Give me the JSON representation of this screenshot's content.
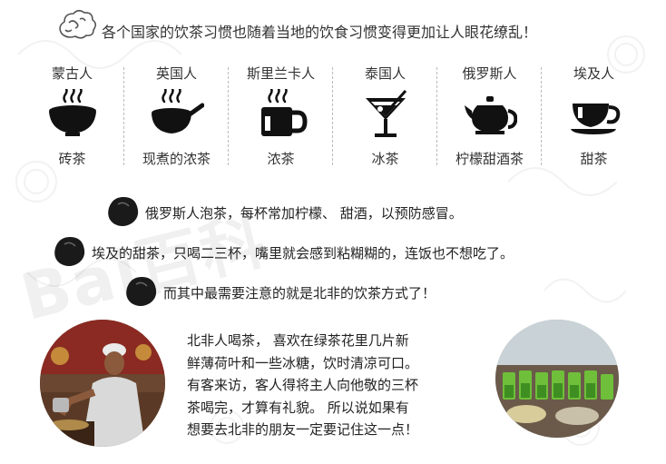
{
  "header": {
    "text": "各个国家的饮茶习惯也随着当地的饮食习惯变得更加让人眼花缭乱！"
  },
  "customs": [
    {
      "country": "蒙古人",
      "tea": "砖茶",
      "icon": "steaming-bowl-icon"
    },
    {
      "country": "英国人",
      "tea": "现煮的浓茶",
      "icon": "steaming-saucepan-icon"
    },
    {
      "country": "斯里兰卡人",
      "tea": "浓茶",
      "icon": "steaming-mug-icon"
    },
    {
      "country": "泰国人",
      "tea": "冰茶",
      "icon": "cocktail-glass-icon"
    },
    {
      "country": "俄罗斯人",
      "tea": "柠檬甜酒茶",
      "icon": "teapot-icon"
    },
    {
      "country": "埃及人",
      "tea": "甜茶",
      "icon": "teacup-saucer-icon"
    }
  ],
  "notes": [
    "俄罗斯人泡茶，每杯常加柠檬、 甜酒，以预防感冒。",
    "埃及的甜茶，只喝二三杯，嘴里就会感到粘糊糊的，连饭也不想吃了。",
    "而其中最需要注意的就是北非的饮茶方式了！"
  ],
  "paragraph_lines": [
    "北非人喝茶， 喜欢在绿茶花里几片新",
    "鲜薄荷叶和一些冰糖，饮时清凉可口。",
    "有客来访，客人得将主人向他敬的三杯",
    "茶喝完，才算有礼貌。 所以说如果有",
    "想要去北非的朋友一定要记住这一点！"
  ],
  "watermark": "Bai百科",
  "colors": {
    "ink": "#111111",
    "text": "#222222",
    "divider": "#bbbbbb"
  }
}
